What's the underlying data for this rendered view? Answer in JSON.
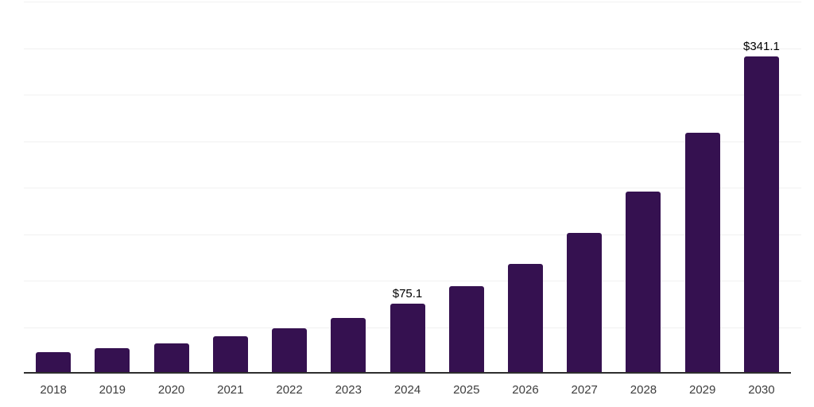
{
  "chart_data": {
    "type": "bar",
    "title": "",
    "subtitle": "",
    "xlabel": "",
    "ylabel": "",
    "ylim": [
      0,
      400
    ],
    "gridline_step": 50,
    "grid": "horizontal-only",
    "legend": "none",
    "y_axis_tick_labels_visible": false,
    "categories": [
      "2018",
      "2019",
      "2020",
      "2021",
      "2022",
      "2023",
      "2024",
      "2025",
      "2026",
      "2027",
      "2028",
      "2029",
      "2030"
    ],
    "values": [
      22.8,
      27.1,
      32.7,
      39.9,
      49.0,
      60.1,
      75.1,
      94.0,
      118.0,
      151.3,
      195.7,
      258.7,
      341.1
    ],
    "data_labels": [
      "",
      "",
      "",
      "",
      "",
      "",
      "$75.1",
      "",
      "",
      "",
      "",
      "",
      "$341.1"
    ],
    "colors": {
      "bar_fill": "#351150",
      "gridline": "#f1f1f1",
      "axis_line": "#2e2e2e",
      "data_label_text": "#000000",
      "tick_label_text": "#3d3d3d",
      "background": "#ffffff"
    }
  }
}
